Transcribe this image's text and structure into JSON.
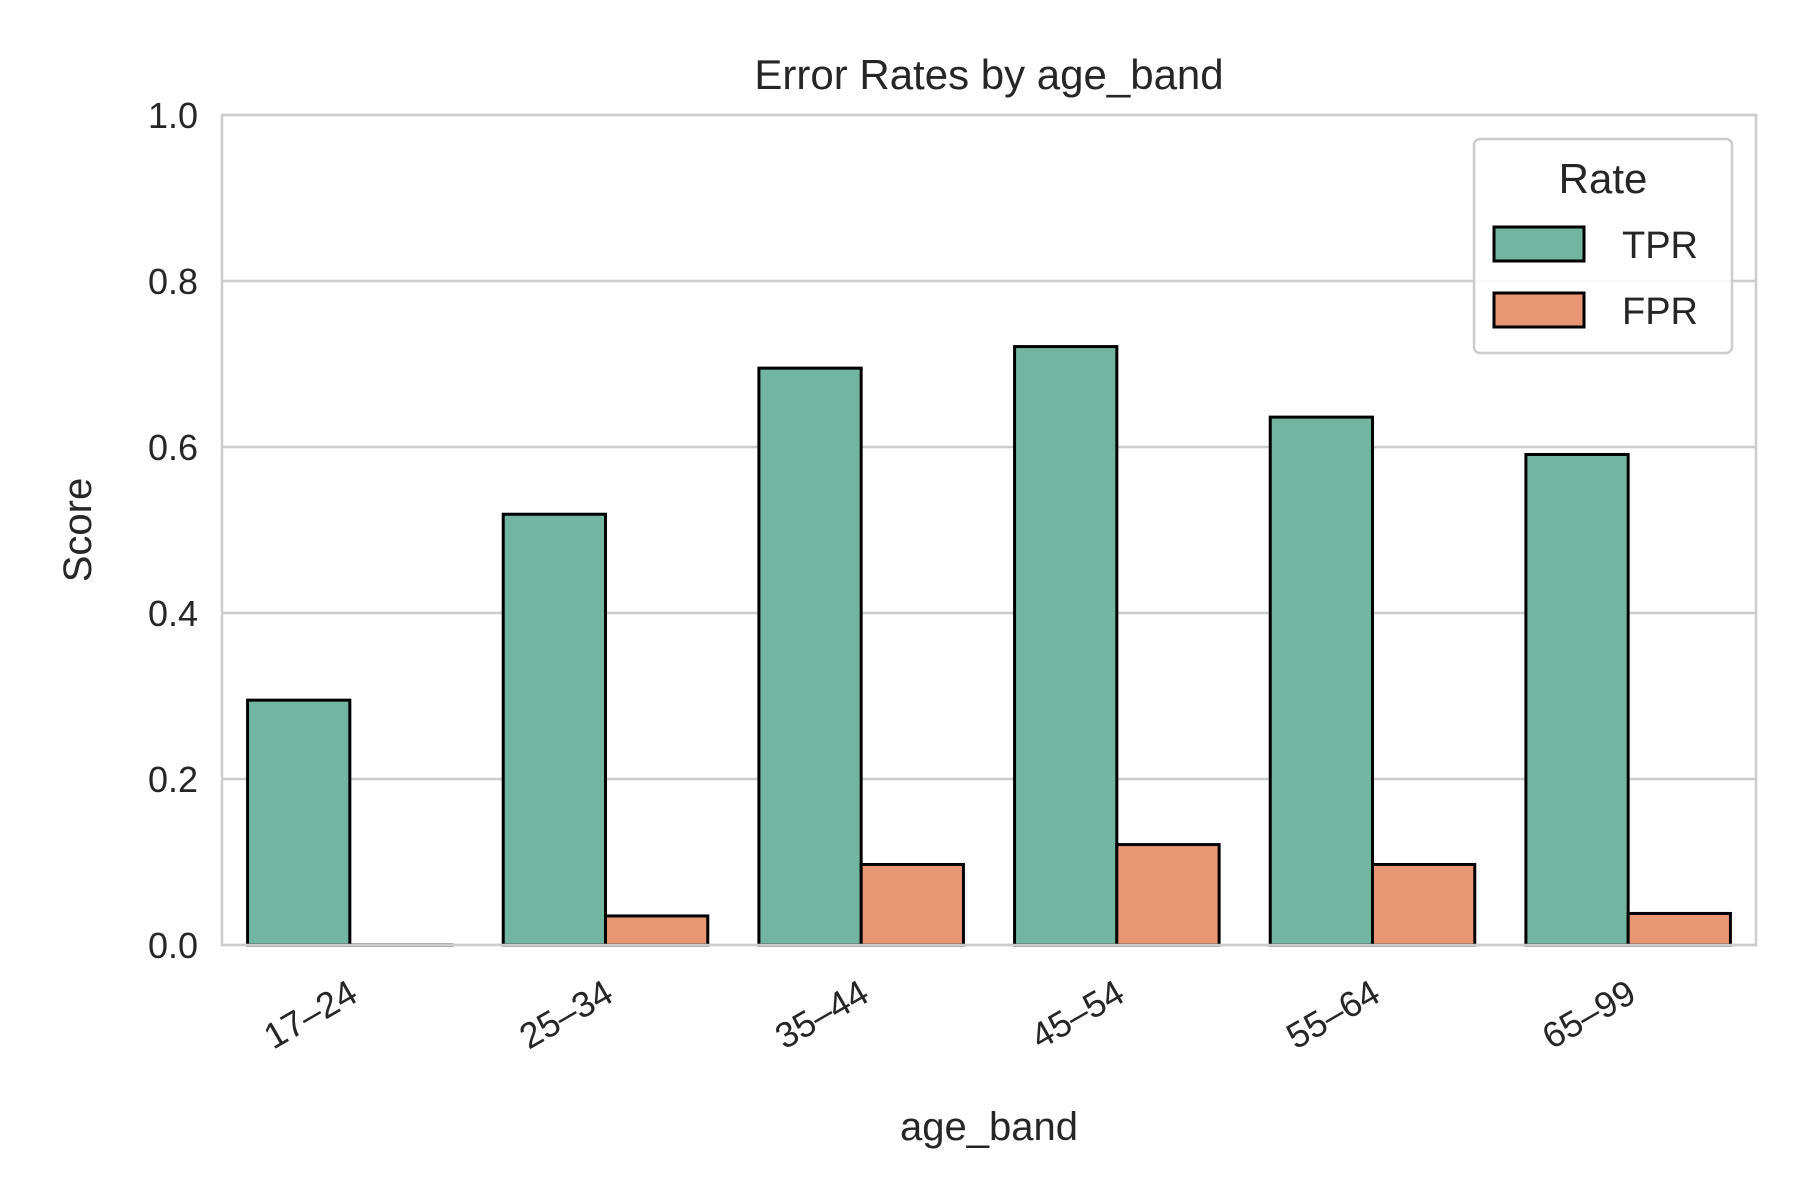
{
  "chart_data": {
    "type": "bar",
    "title": "Error Rates by age_band",
    "xlabel": "age_band",
    "ylabel": "Score",
    "ylim": [
      0.0,
      1.0
    ],
    "yticks": [
      "0.0",
      "0.2",
      "0.4",
      "0.6",
      "0.8",
      "1.0"
    ],
    "grid": "horizontal",
    "categories": [
      "17–24",
      "25–34",
      "35–44",
      "45–54",
      "55–64",
      "65–99"
    ],
    "series": [
      {
        "name": "TPR",
        "color": "#72b6a1",
        "values": [
          0.295,
          0.519,
          0.695,
          0.721,
          0.636,
          0.591
        ]
      },
      {
        "name": "FPR",
        "color": "#e99675",
        "values": [
          0.0,
          0.035,
          0.097,
          0.121,
          0.097,
          0.038
        ]
      }
    ],
    "legend": {
      "title": "Rate",
      "placement": "top-right"
    }
  }
}
